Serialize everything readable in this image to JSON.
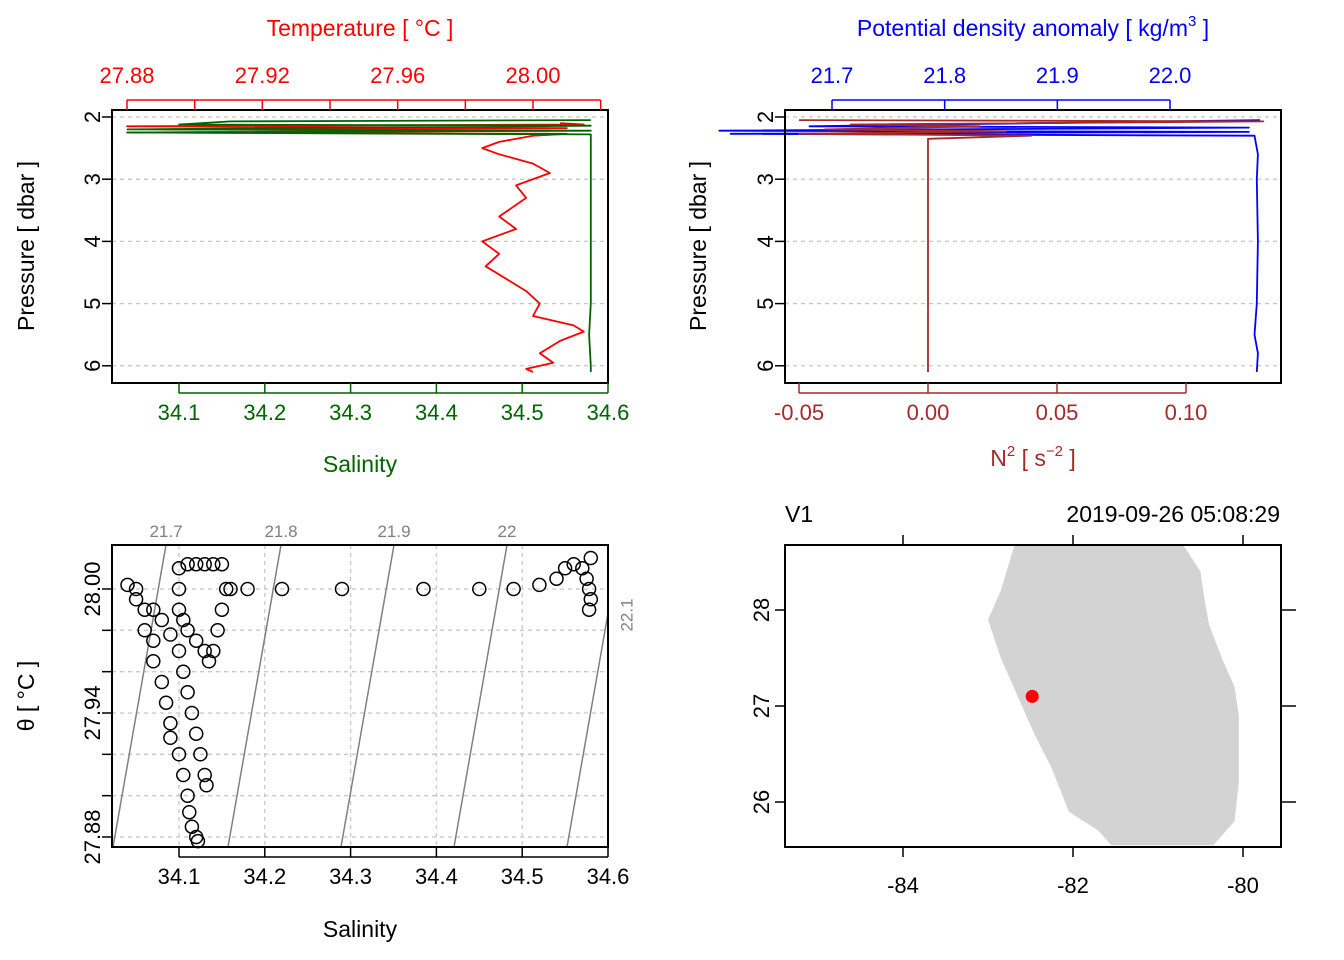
{
  "chart_data": [
    {
      "panel": "top-left",
      "type": "line",
      "top_axis": {
        "label": "Temperature [ °C ]",
        "ticks": [
          "27.88",
          "27.92",
          "27.96",
          "28.00"
        ],
        "range": [
          27.88,
          28.02
        ],
        "color": "#ff0000"
      },
      "bottom_axis": {
        "label": "Salinity",
        "ticks": [
          "34.1",
          "34.2",
          "34.3",
          "34.4",
          "34.5",
          "34.6"
        ],
        "range": [
          34.04,
          34.6
        ],
        "color": "#006400"
      },
      "ylabel": "Pressure [ dbar ]",
      "yticks": [
        "2",
        "3",
        "4",
        "5",
        "6"
      ],
      "ylim": [
        2.0,
        6.1
      ],
      "y_reversed": true,
      "grid": "horizontal dashed",
      "series": [
        {
          "axis": "top",
          "color": "#ff0000",
          "points": [
            [
              28.008,
              2.1
            ],
            [
              28.015,
              2.12
            ],
            [
              27.88,
              2.15
            ],
            [
              28.01,
              2.18
            ],
            [
              27.89,
              2.2
            ],
            [
              28.005,
              2.22
            ],
            [
              27.88,
              2.25
            ],
            [
              28.01,
              2.27
            ],
            [
              28.0,
              2.3
            ],
            [
              27.99,
              2.4
            ],
            [
              27.985,
              2.5
            ],
            [
              27.99,
              2.6
            ],
            [
              28.0,
              2.75
            ],
            [
              28.005,
              2.9
            ],
            [
              27.995,
              3.1
            ],
            [
              27.998,
              3.3
            ],
            [
              27.99,
              3.6
            ],
            [
              27.995,
              3.8
            ],
            [
              27.985,
              4.0
            ],
            [
              27.99,
              4.2
            ],
            [
              27.986,
              4.4
            ],
            [
              27.992,
              4.6
            ],
            [
              27.998,
              4.8
            ],
            [
              28.002,
              5.0
            ],
            [
              28.0,
              5.2
            ],
            [
              28.012,
              5.35
            ],
            [
              28.015,
              5.45
            ],
            [
              28.008,
              5.6
            ],
            [
              28.002,
              5.8
            ],
            [
              28.006,
              5.95
            ],
            [
              27.998,
              6.05
            ],
            [
              28.0,
              6.1
            ]
          ]
        },
        {
          "axis": "bottom",
          "color": "#006400",
          "points": [
            [
              34.58,
              2.05
            ],
            [
              34.16,
              2.07
            ],
            [
              34.1,
              2.12
            ],
            [
              34.58,
              2.14
            ],
            [
              34.04,
              2.2
            ],
            [
              34.58,
              2.22
            ],
            [
              34.04,
              2.25
            ],
            [
              34.58,
              2.28
            ],
            [
              34.58,
              2.5
            ],
            [
              34.58,
              3.0
            ],
            [
              34.58,
              4.0
            ],
            [
              34.58,
              5.0
            ],
            [
              34.578,
              5.5
            ],
            [
              34.58,
              6.0
            ],
            [
              34.58,
              6.1
            ]
          ]
        }
      ]
    },
    {
      "panel": "top-right",
      "type": "line",
      "top_axis": {
        "label": "Potential density anomaly [ kg/m",
        "label_sup": "3",
        "label_end": " ]",
        "ticks": [
          "21.7",
          "21.8",
          "21.9",
          "22.0"
        ],
        "range": [
          21.6,
          22.1
        ],
        "color": "#0000ff"
      },
      "bottom_axis": {
        "label": "N",
        "label_sup": "2",
        "label_mid": " [ s",
        "label_sup2": "−2",
        "label_end": " ]",
        "ticks": [
          "-0.05",
          "0.00",
          "0.05",
          "0.10"
        ],
        "range": [
          -0.05,
          0.13
        ],
        "color": "#a52a2a"
      },
      "ylabel": "Pressure [ dbar ]",
      "yticks": [
        "2",
        "3",
        "4",
        "5",
        "6"
      ],
      "ylim": [
        2.0,
        6.1
      ],
      "y_reversed": true,
      "grid": "horizontal dashed",
      "series": [
        {
          "axis": "top",
          "color": "#0000ff",
          "points": [
            [
              22.08,
              2.05
            ],
            [
              21.68,
              2.15
            ],
            [
              22.07,
              2.17
            ],
            [
              21.6,
              2.22
            ],
            [
              22.07,
              2.24
            ],
            [
              21.61,
              2.27
            ],
            [
              22.075,
              2.3
            ],
            [
              22.078,
              2.6
            ],
            [
              22.077,
              3.0
            ],
            [
              22.078,
              4.0
            ],
            [
              22.077,
              5.0
            ],
            [
              22.075,
              5.5
            ],
            [
              22.078,
              5.8
            ],
            [
              22.077,
              6.1
            ]
          ]
        },
        {
          "axis": "bottom",
          "color": "#a52a2a",
          "points": [
            [
              -0.05,
              2.05
            ],
            [
              0.13,
              2.07
            ],
            [
              -0.03,
              2.12
            ],
            [
              0.02,
              2.15
            ],
            [
              -0.04,
              2.2
            ],
            [
              0.03,
              2.23
            ],
            [
              -0.05,
              2.27
            ],
            [
              0.04,
              2.3
            ],
            [
              0.0,
              2.35
            ],
            [
              0.0,
              3.0
            ],
            [
              0.0,
              4.0
            ],
            [
              0.0,
              5.0
            ],
            [
              0.0,
              6.1
            ]
          ]
        }
      ]
    },
    {
      "panel": "bottom-left",
      "type": "scatter",
      "xlabel": "Salinity",
      "ylabel": "θ [ °C ]",
      "xticks": [
        "34.1",
        "34.2",
        "34.3",
        "34.4",
        "34.5",
        "34.6"
      ],
      "xlim": [
        34.02,
        34.6
      ],
      "yticks": [
        "27.88",
        "27.94",
        "28.00"
      ],
      "ylim": [
        27.875,
        28.02
      ],
      "grid": "dashed",
      "isopycnals": [
        "21.7",
        "21.8",
        "21.9",
        "22",
        "22.1"
      ],
      "points": [
        [
          34.04,
          28.002
        ],
        [
          34.05,
          28.0
        ],
        [
          34.05,
          27.995
        ],
        [
          34.06,
          27.99
        ],
        [
          34.06,
          27.98
        ],
        [
          34.07,
          27.975
        ],
        [
          34.07,
          27.965
        ],
        [
          34.08,
          27.955
        ],
        [
          34.085,
          27.945
        ],
        [
          34.09,
          27.935
        ],
        [
          34.09,
          27.928
        ],
        [
          34.1,
          27.92
        ],
        [
          34.105,
          27.91
        ],
        [
          34.11,
          27.9
        ],
        [
          34.112,
          27.892
        ],
        [
          34.115,
          27.885
        ],
        [
          34.12,
          27.88
        ],
        [
          34.122,
          27.878
        ],
        [
          34.07,
          27.99
        ],
        [
          34.08,
          27.985
        ],
        [
          34.09,
          27.978
        ],
        [
          34.1,
          27.97
        ],
        [
          34.105,
          27.96
        ],
        [
          34.11,
          27.95
        ],
        [
          34.115,
          27.94
        ],
        [
          34.12,
          27.93
        ],
        [
          34.125,
          27.92
        ],
        [
          34.13,
          27.91
        ],
        [
          34.132,
          27.905
        ],
        [
          34.1,
          28.01
        ],
        [
          34.11,
          28.012
        ],
        [
          34.12,
          28.012
        ],
        [
          34.13,
          28.012
        ],
        [
          34.14,
          28.012
        ],
        [
          34.15,
          28.012
        ],
        [
          34.1,
          28.0
        ],
        [
          34.1,
          27.99
        ],
        [
          34.105,
          27.985
        ],
        [
          34.11,
          27.98
        ],
        [
          34.12,
          27.975
        ],
        [
          34.13,
          27.97
        ],
        [
          34.135,
          27.965
        ],
        [
          34.14,
          27.97
        ],
        [
          34.145,
          27.98
        ],
        [
          34.15,
          27.99
        ],
        [
          34.155,
          28.0
        ],
        [
          34.16,
          28.0
        ],
        [
          34.18,
          28.0
        ],
        [
          34.22,
          28.0
        ],
        [
          34.29,
          28.0
        ],
        [
          34.385,
          28.0
        ],
        [
          34.45,
          28.0
        ],
        [
          34.49,
          28.0
        ],
        [
          34.52,
          28.002
        ],
        [
          34.54,
          28.005
        ],
        [
          34.55,
          28.01
        ],
        [
          34.56,
          28.012
        ],
        [
          34.57,
          28.01
        ],
        [
          34.575,
          28.005
        ],
        [
          34.578,
          28.0
        ],
        [
          34.58,
          27.995
        ],
        [
          34.578,
          27.99
        ],
        [
          34.58,
          28.015
        ]
      ]
    },
    {
      "panel": "bottom-right",
      "type": "map",
      "station": "V1",
      "time": "2019-09-26 05:08:29",
      "xticks": [
        "-84",
        "-82",
        "-80"
      ],
      "xlim": [
        -85.4,
        -79.6
      ],
      "yticks": [
        "26",
        "27",
        "28"
      ],
      "ylim": [
        25.55,
        28.7
      ],
      "land_color": "#d3d3d3",
      "station_point": {
        "lon": -82.48,
        "lat": 27.1,
        "color": "#ff0000"
      },
      "coastline": [
        [
          -82.68,
          28.7
        ],
        [
          -82.85,
          28.2
        ],
        [
          -83.0,
          27.9
        ],
        [
          -82.85,
          27.5
        ],
        [
          -82.65,
          27.1
        ],
        [
          -82.45,
          26.7
        ],
        [
          -82.25,
          26.35
        ],
        [
          -82.05,
          25.9
        ],
        [
          -81.7,
          25.7
        ],
        [
          -81.55,
          25.55
        ],
        [
          -80.35,
          25.55
        ],
        [
          -80.1,
          25.8
        ],
        [
          -80.05,
          26.2
        ],
        [
          -80.05,
          26.9
        ],
        [
          -80.1,
          27.2
        ],
        [
          -80.25,
          27.5
        ],
        [
          -80.4,
          27.85
        ],
        [
          -80.45,
          28.1
        ],
        [
          -80.5,
          28.4
        ],
        [
          -80.72,
          28.7
        ]
      ]
    }
  ]
}
